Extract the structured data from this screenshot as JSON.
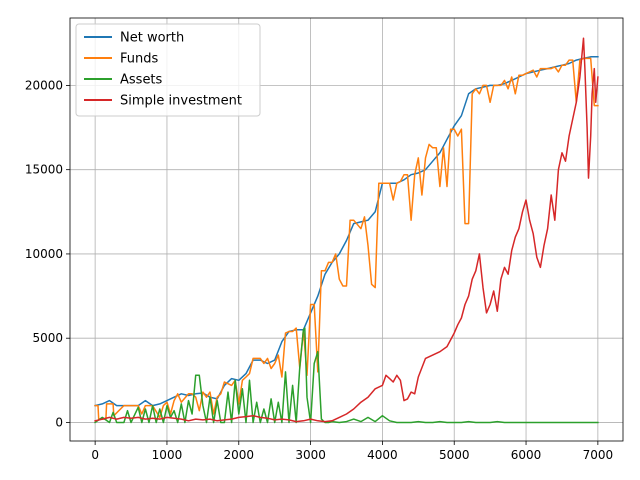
{
  "chart_data": {
    "type": "line",
    "title": "",
    "xlabel": "",
    "ylabel": "",
    "xlim": [
      -350,
      7350
    ],
    "ylim": [
      -1100,
      24000
    ],
    "xticks": [
      0,
      1000,
      2000,
      3000,
      4000,
      5000,
      6000,
      7000
    ],
    "xtick_labels": [
      "0",
      "1000",
      "2000",
      "3000",
      "4000",
      "5000",
      "6000",
      "7000"
    ],
    "yticks": [
      0,
      5000,
      10000,
      15000,
      20000
    ],
    "ytick_labels": [
      "0",
      "5000",
      "10000",
      "15000",
      "20000"
    ],
    "grid": true,
    "legend_position": "top-left",
    "series": [
      {
        "name": "Net worth",
        "color": "#1f77b4",
        "x": [
          0,
          100,
          200,
          300,
          400,
          500,
          600,
          700,
          800,
          900,
          1000,
          1100,
          1200,
          1300,
          1400,
          1500,
          1600,
          1700,
          1800,
          1900,
          2000,
          2100,
          2200,
          2300,
          2400,
          2500,
          2600,
          2700,
          2800,
          2900,
          3000,
          3100,
          3200,
          3300,
          3400,
          3500,
          3600,
          3700,
          3800,
          3900,
          4000,
          4100,
          4200,
          4300,
          4400,
          4500,
          4600,
          4700,
          4800,
          4900,
          5000,
          5100,
          5200,
          5300,
          5400,
          5500,
          5600,
          5700,
          5800,
          5900,
          6000,
          6100,
          6200,
          6300,
          6400,
          6500,
          6600,
          6700,
          6800,
          6900,
          7000
        ],
        "y": [
          1000,
          1100,
          1300,
          1000,
          1000,
          1000,
          1000,
          1300,
          1000,
          1100,
          1300,
          1500,
          1700,
          1600,
          1700,
          1750,
          1500,
          1400,
          2200,
          2600,
          2500,
          2900,
          3700,
          3700,
          3500,
          3700,
          4800,
          5400,
          5500,
          5500,
          6500,
          7500,
          8800,
          9500,
          10000,
          10800,
          11800,
          11900,
          12000,
          12500,
          14200,
          14200,
          14200,
          14400,
          14700,
          14800,
          15000,
          15500,
          16000,
          16800,
          17600,
          18200,
          19500,
          19800,
          19900,
          20000,
          20000,
          20100,
          20300,
          20500,
          20700,
          20800,
          20900,
          21000,
          21100,
          21200,
          21300,
          21500,
          21600,
          21700,
          21700
        ]
      },
      {
        "name": "Funds",
        "color": "#ff7f0e",
        "x": [
          0,
          40,
          50,
          150,
          160,
          250,
          260,
          400,
          500,
          600,
          650,
          700,
          800,
          900,
          950,
          1000,
          1050,
          1100,
          1150,
          1200,
          1300,
          1350,
          1400,
          1450,
          1500,
          1550,
          1600,
          1650,
          1700,
          1750,
          1800,
          1850,
          1900,
          1950,
          2000,
          2050,
          2100,
          2150,
          2200,
          2300,
          2350,
          2400,
          2450,
          2500,
          2550,
          2600,
          2650,
          2700,
          2750,
          2800,
          2850,
          2900,
          2950,
          3000,
          3050,
          3100,
          3150,
          3200,
          3250,
          3300,
          3350,
          3400,
          3450,
          3500,
          3550,
          3600,
          3700,
          3750,
          3800,
          3850,
          3900,
          3950,
          4000,
          4050,
          4100,
          4150,
          4200,
          4250,
          4300,
          4350,
          4400,
          4450,
          4500,
          4550,
          4600,
          4650,
          4700,
          4750,
          4800,
          4850,
          4900,
          4950,
          5000,
          5050,
          5100,
          5150,
          5200,
          5250,
          5300,
          5350,
          5400,
          5450,
          5500,
          5550,
          5600,
          5650,
          5700,
          5750,
          5800,
          5850,
          5900,
          5950,
          6000,
          6050,
          6100,
          6150,
          6200,
          6250,
          6300,
          6350,
          6400,
          6450,
          6500,
          6550,
          6600,
          6650,
          6700,
          6750,
          6800,
          6850,
          6900,
          6950,
          7000
        ],
        "y": [
          1000,
          1000,
          200,
          200,
          1100,
          1100,
          400,
          1000,
          1000,
          1000,
          500,
          1000,
          1000,
          300,
          1000,
          1200,
          500,
          1300,
          1700,
          1200,
          1700,
          1700,
          1500,
          700,
          1800,
          1500,
          1800,
          500,
          1500,
          1700,
          2400,
          2300,
          2200,
          2500,
          1100,
          2500,
          2700,
          2900,
          3800,
          3800,
          3500,
          3800,
          3200,
          3500,
          4000,
          2700,
          5300,
          5400,
          5400,
          5600,
          3200,
          5500,
          2800,
          7000,
          7000,
          3000,
          9000,
          9000,
          9500,
          9500,
          10000,
          8500,
          8100,
          8100,
          12000,
          12000,
          11500,
          12200,
          10500,
          8200,
          8000,
          14200,
          14200,
          14200,
          14200,
          13200,
          14200,
          14300,
          14700,
          14700,
          12000,
          14700,
          15700,
          13500,
          15700,
          16500,
          16300,
          16300,
          14000,
          16300,
          14000,
          17400,
          17400,
          17000,
          17400,
          11800,
          11800,
          19500,
          19800,
          19500,
          20000,
          20000,
          19000,
          20000,
          20000,
          20000,
          20300,
          19800,
          20500,
          19500,
          20600,
          20600,
          20700,
          20800,
          20900,
          20500,
          21000,
          21000,
          21000,
          21000,
          21100,
          20800,
          21200,
          21200,
          21500,
          21500,
          19000,
          21500,
          21600,
          21600,
          21600,
          18800,
          18800
        ]
      },
      {
        "name": "Assets",
        "color": "#2ca02c",
        "x": [
          0,
          100,
          200,
          250,
          300,
          400,
          450,
          500,
          600,
          650,
          700,
          750,
          800,
          850,
          900,
          950,
          1000,
          1050,
          1100,
          1150,
          1200,
          1250,
          1300,
          1350,
          1400,
          1450,
          1500,
          1550,
          1600,
          1650,
          1700,
          1750,
          1800,
          1850,
          1900,
          1950,
          2000,
          2050,
          2100,
          2150,
          2200,
          2250,
          2300,
          2350,
          2400,
          2450,
          2500,
          2550,
          2600,
          2650,
          2700,
          2750,
          2800,
          2850,
          2900,
          2920,
          2950,
          3000,
          3050,
          3100,
          3150,
          3200,
          3250,
          3300,
          3400,
          3500,
          3600,
          3700,
          3800,
          3900,
          4000,
          4100,
          4200,
          4300,
          4400,
          4500,
          4600,
          4700,
          4800,
          4900,
          5000,
          5100,
          5200,
          5300,
          5400,
          5500,
          5600,
          5700,
          5800,
          5900,
          6000,
          6200,
          6400,
          6600,
          6800,
          7000
        ],
        "y": [
          0,
          300,
          0,
          600,
          0,
          0,
          700,
          0,
          900,
          0,
          800,
          0,
          1000,
          0,
          800,
          0,
          1000,
          300,
          700,
          0,
          1100,
          0,
          1300,
          500,
          2800,
          2800,
          1000,
          0,
          1500,
          0,
          1300,
          0,
          0,
          1800,
          0,
          2500,
          500,
          2000,
          0,
          2500,
          0,
          1200,
          0,
          800,
          0,
          1400,
          0,
          1200,
          0,
          3000,
          0,
          2200,
          0,
          3300,
          5500,
          5600,
          1500,
          0,
          3500,
          4200,
          200,
          0,
          0,
          50,
          0,
          50,
          200,
          50,
          300,
          50,
          400,
          100,
          0,
          0,
          0,
          50,
          0,
          0,
          50,
          0,
          0,
          0,
          50,
          0,
          0,
          0,
          50,
          0,
          0,
          0,
          0,
          0,
          0,
          0,
          0,
          0
        ]
      },
      {
        "name": "Simple investment",
        "color": "#d62728",
        "x": [
          0,
          100,
          200,
          300,
          400,
          500,
          600,
          700,
          800,
          900,
          1000,
          1100,
          1200,
          1300,
          1400,
          1500,
          1600,
          1700,
          1800,
          1900,
          2000,
          2100,
          2200,
          2300,
          2400,
          2500,
          2600,
          2700,
          2800,
          2900,
          3000,
          3100,
          3200,
          3300,
          3400,
          3500,
          3600,
          3700,
          3800,
          3900,
          4000,
          4050,
          4100,
          4150,
          4200,
          4250,
          4300,
          4350,
          4400,
          4450,
          4500,
          4600,
          4700,
          4800,
          4900,
          5000,
          5050,
          5100,
          5150,
          5200,
          5250,
          5300,
          5350,
          5400,
          5450,
          5500,
          5550,
          5600,
          5650,
          5700,
          5750,
          5800,
          5850,
          5900,
          5950,
          6000,
          6050,
          6100,
          6150,
          6200,
          6250,
          6300,
          6350,
          6400,
          6450,
          6500,
          6550,
          6600,
          6650,
          6700,
          6750,
          6800,
          6820,
          6850,
          6870,
          6900,
          6920,
          6950,
          6970,
          7000
        ],
        "y": [
          100,
          200,
          300,
          200,
          300,
          250,
          300,
          200,
          250,
          200,
          300,
          250,
          200,
          100,
          200,
          150,
          200,
          100,
          150,
          200,
          300,
          350,
          400,
          300,
          250,
          150,
          200,
          150,
          50,
          100,
          200,
          100,
          50,
          100,
          300,
          500,
          800,
          1200,
          1500,
          2000,
          2200,
          2800,
          2600,
          2400,
          2800,
          2500,
          1300,
          1400,
          1800,
          1700,
          2700,
          3800,
          4000,
          4200,
          4500,
          5300,
          5800,
          6200,
          7000,
          7500,
          8500,
          9000,
          10000,
          8000,
          6500,
          7000,
          7800,
          6600,
          8500,
          9200,
          8800,
          10200,
          11000,
          11500,
          12500,
          13200,
          12000,
          11200,
          9800,
          9200,
          10500,
          11500,
          13500,
          12000,
          15000,
          16000,
          15500,
          17000,
          18000,
          19000,
          20500,
          22800,
          21000,
          17500,
          14500,
          17000,
          19500,
          21000,
          19000,
          20500
        ]
      }
    ]
  }
}
